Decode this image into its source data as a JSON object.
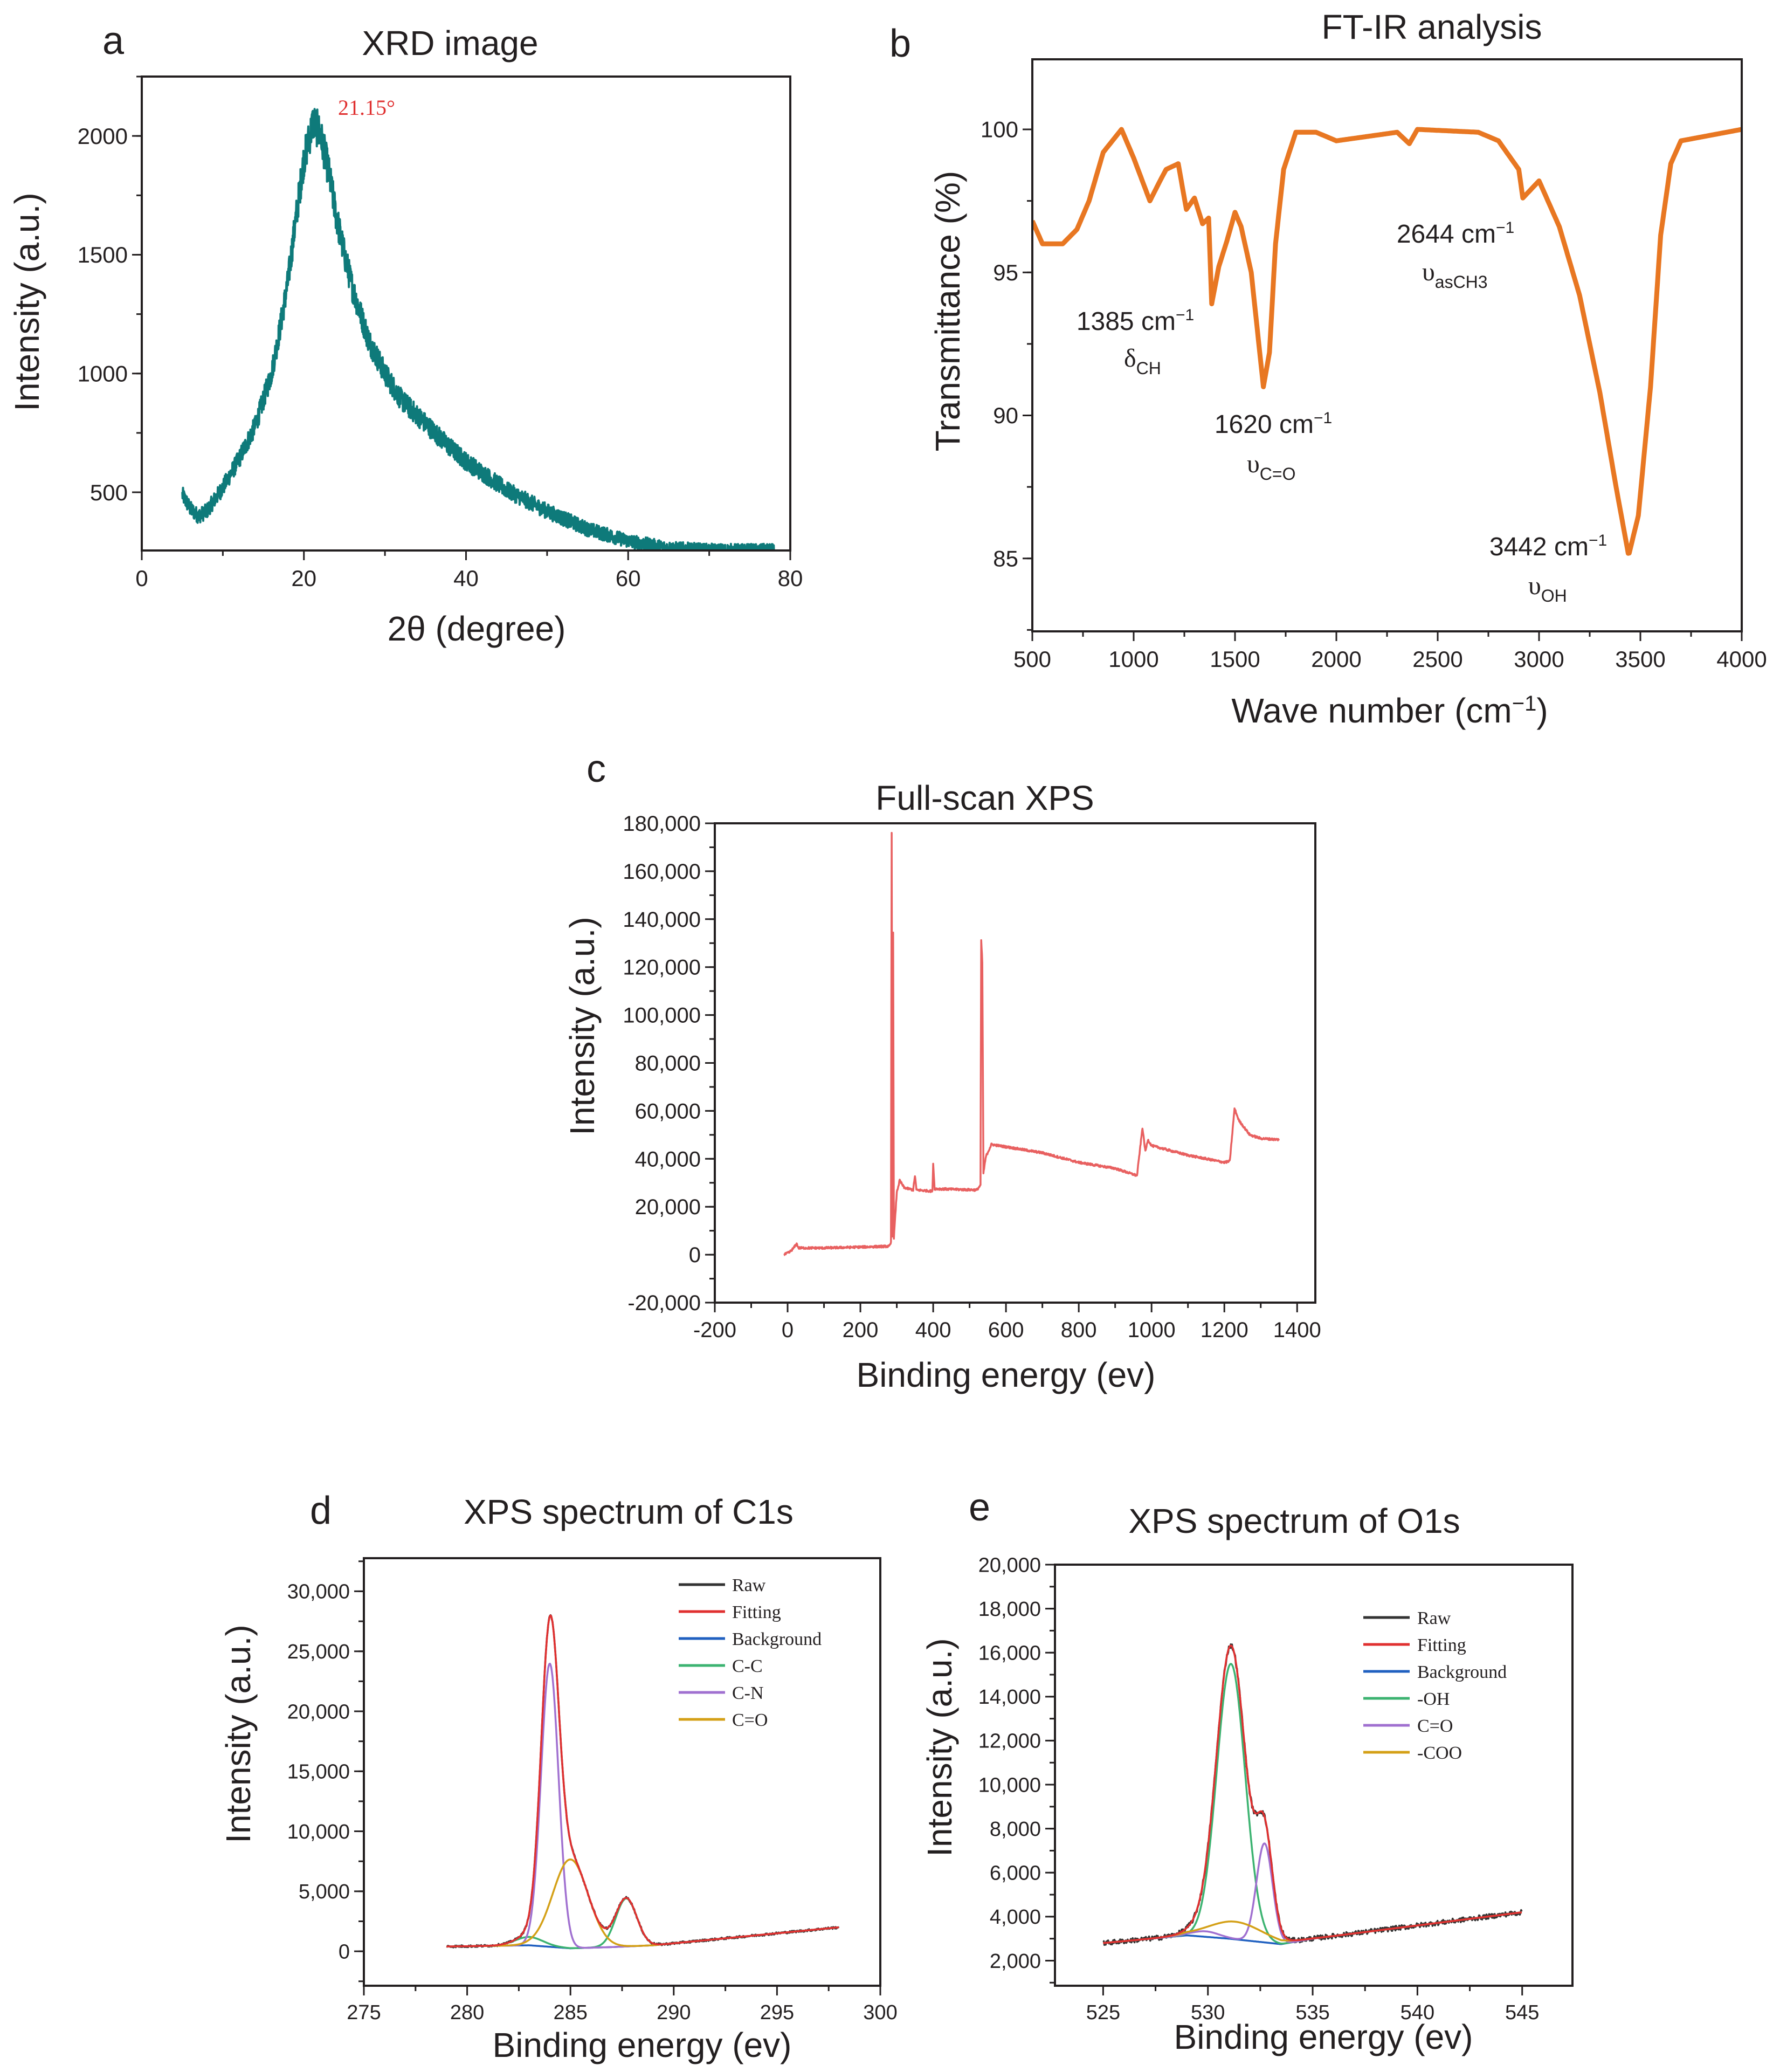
{
  "chart_data": [
    {
      "id": "xrd",
      "panel": "a",
      "type": "line",
      "title": "XRD image",
      "xlabel": "2θ (degree)",
      "ylabel": "Intensity (a.u.)",
      "xlim": [
        0,
        80
      ],
      "ylim": [
        255,
        2250
      ],
      "xticks": [
        0,
        20,
        40,
        60,
        80
      ],
      "xtick_labels": [
        "0",
        "20",
        "40",
        "60",
        "80"
      ],
      "yticks": [
        500,
        1000,
        1500,
        2000
      ],
      "ytick_labels": [
        "500",
        "1000",
        "1500",
        "2000"
      ],
      "grid": false,
      "series": [
        {
          "name": "XRD",
          "color": "#0e7a7a",
          "points": [
            [
              5,
              490
            ],
            [
              6,
              430
            ],
            [
              7,
              400
            ],
            [
              8,
              420
            ],
            [
              10,
              520
            ],
            [
              12,
              640
            ],
            [
              14,
              780
            ],
            [
              16,
              1000
            ],
            [
              17,
              1180
            ],
            [
              18,
              1380
            ],
            [
              19,
              1650
            ],
            [
              20,
              1900
            ],
            [
              21.15,
              2060
            ],
            [
              22,
              2010
            ],
            [
              23,
              1860
            ],
            [
              24,
              1660
            ],
            [
              25,
              1500
            ],
            [
              26,
              1360
            ],
            [
              28,
              1140
            ],
            [
              30,
              1000
            ],
            [
              32,
              890
            ],
            [
              35,
              790
            ],
            [
              38,
              690
            ],
            [
              40,
              630
            ],
            [
              45,
              510
            ],
            [
              50,
              420
            ],
            [
              55,
              345
            ],
            [
              60,
              295
            ],
            [
              65,
              265
            ],
            [
              70,
              256
            ],
            [
              78,
              255
            ]
          ]
        }
      ],
      "annotations": [
        {
          "label": "21.15°",
          "color": "#e03030"
        }
      ]
    },
    {
      "id": "ftir",
      "panel": "b",
      "type": "line",
      "title": "FT-IR analysis",
      "xlabel": "Wave number (cm",
      "xlabel_sup": "−1",
      "xlabel_end": ")",
      "ylabel": "Transmittance (%)",
      "xlim": [
        500,
        4000
      ],
      "ylim": [
        82.45,
        102.45
      ],
      "xticks": [
        500,
        1000,
        1500,
        2000,
        2500,
        3000,
        3500,
        4000
      ],
      "xtick_labels": [
        "500",
        "1000",
        "1500",
        "2000",
        "2500",
        "3000",
        "3500",
        "4000"
      ],
      "yticks": [
        85,
        90,
        95,
        100
      ],
      "ytick_labels": [
        "85",
        "90",
        "95",
        "100"
      ],
      "grid": false,
      "series": [
        {
          "name": "FT-IR",
          "color": "#e87722",
          "points": [
            [
              500,
              96.8
            ],
            [
              550,
              96
            ],
            [
              650,
              96
            ],
            [
              720,
              96.5
            ],
            [
              780,
              97.5
            ],
            [
              850,
              99.2
            ],
            [
              940,
              100
            ],
            [
              1000,
              99
            ],
            [
              1080,
              97.5
            ],
            [
              1130,
              98.2
            ],
            [
              1160,
              98.6
            ],
            [
              1220,
              98.8
            ],
            [
              1260,
              97.2
            ],
            [
              1300,
              97.6
            ],
            [
              1340,
              96.7
            ],
            [
              1370,
              96.9
            ],
            [
              1385,
              93.9
            ],
            [
              1420,
              95.2
            ],
            [
              1460,
              96.1
            ],
            [
              1500,
              97.1
            ],
            [
              1530,
              96.6
            ],
            [
              1580,
              95
            ],
            [
              1610,
              93
            ],
            [
              1640,
              91
            ],
            [
              1670,
              92.2
            ],
            [
              1700,
              96
            ],
            [
              1740,
              98.6
            ],
            [
              1800,
              99.9
            ],
            [
              1900,
              99.9
            ],
            [
              2000,
              99.6
            ],
            [
              2200,
              99.8
            ],
            [
              2300,
              99.9
            ],
            [
              2360,
              99.5
            ],
            [
              2400,
              100
            ],
            [
              2700,
              99.9
            ],
            [
              2800,
              99.6
            ],
            [
              2850,
              99.1
            ],
            [
              2900,
              98.6
            ],
            [
              2920,
              97.6
            ],
            [
              3000,
              98.2
            ],
            [
              3100,
              96.6
            ],
            [
              3200,
              94.2
            ],
            [
              3300,
              90.8
            ],
            [
              3380,
              87.5
            ],
            [
              3442,
              85.1
            ],
            [
              3490,
              86.5
            ],
            [
              3550,
              91
            ],
            [
              3600,
              96.3
            ],
            [
              3650,
              98.8
            ],
            [
              3700,
              99.6
            ],
            [
              3850,
              99.8
            ],
            [
              4000,
              100
            ]
          ]
        }
      ],
      "annotations": [
        {
          "label": "1385 cm",
          "sup": "−1",
          "symbol": "δ",
          "sub": "CH"
        },
        {
          "label": "1620 cm",
          "sup": "−1",
          "symbol": "υ",
          "sub": "C=O"
        },
        {
          "label": "2644 cm",
          "sup": "−1",
          "symbol": "υ",
          "sub": "asCH3"
        },
        {
          "label": "3442 cm",
          "sup": "−1",
          "symbol": "υ",
          "sub": "OH"
        }
      ]
    },
    {
      "id": "fullscan",
      "panel": "c",
      "type": "line",
      "title": "Full-scan XPS",
      "xlabel": "Binding energy (ev)",
      "ylabel": "Intensity (a.u.)",
      "xlim": [
        -200,
        1450
      ],
      "ylim": [
        -20000,
        180000
      ],
      "xticks": [
        -200,
        0,
        200,
        400,
        600,
        800,
        1000,
        1200,
        1400
      ],
      "xtick_labels": [
        "-200",
        "0",
        "200",
        "400",
        "600",
        "800",
        "1000",
        "1200",
        "1400"
      ],
      "yticks": [
        -20000,
        0,
        20000,
        40000,
        60000,
        80000,
        100000,
        120000,
        140000,
        160000,
        180000
      ],
      "ytick_labels": [
        "-20,000",
        "0",
        "20,000",
        "40,000",
        "60,000",
        "80,000",
        "100,000",
        "120,000",
        "140,000",
        "160,000",
        "180,000"
      ],
      "grid": false,
      "series": [
        {
          "name": "Full-scan",
          "color": "#e86060",
          "points": [
            [
              -10,
              0
            ],
            [
              5,
              1000
            ],
            [
              15,
              2500
            ],
            [
              25,
              4500
            ],
            [
              30,
              2800
            ],
            [
              100,
              2800
            ],
            [
              280,
              3500
            ],
            [
              284,
              5000
            ],
            [
              286,
              176000
            ],
            [
              288,
              8000
            ],
            [
              290,
              134000
            ],
            [
              292,
              7000
            ],
            [
              300,
              26000
            ],
            [
              308,
              31000
            ],
            [
              320,
              28000
            ],
            [
              345,
              27000
            ],
            [
              350,
              33000
            ],
            [
              354,
              27000
            ],
            [
              398,
              26500
            ],
            [
              400,
              38000
            ],
            [
              404,
              27500
            ],
            [
              520,
              27000
            ],
            [
              530,
              29000
            ],
            [
              532,
              131000
            ],
            [
              535,
              122000
            ],
            [
              538,
              34000
            ],
            [
              545,
              41000
            ],
            [
              560,
              46000
            ],
            [
              600,
              45000
            ],
            [
              700,
              42500
            ],
            [
              800,
              38500
            ],
            [
              900,
              36000
            ],
            [
              960,
              33000
            ],
            [
              975,
              53000
            ],
            [
              983,
              43000
            ],
            [
              990,
              48000
            ],
            [
              1000,
              45500
            ],
            [
              1100,
              41500
            ],
            [
              1200,
              38500
            ],
            [
              1215,
              39000
            ],
            [
              1228,
              61000
            ],
            [
              1240,
              56000
            ],
            [
              1270,
              50000
            ],
            [
              1300,
              48500
            ],
            [
              1350,
              48000
            ]
          ]
        }
      ]
    },
    {
      "id": "c1s",
      "panel": "d",
      "type": "line",
      "title": "XPS spectrum of C1s",
      "xlabel": "Binding energy (ev)",
      "ylabel": "Intensity (a.u.)",
      "xlim": [
        275,
        300
      ],
      "ylim": [
        -2870,
        32760
      ],
      "xticks": [
        275,
        280,
        285,
        290,
        295,
        300
      ],
      "xtick_labels": [
        "275",
        "280",
        "285",
        "290",
        "295",
        "300"
      ],
      "yticks": [
        0,
        5000,
        10000,
        15000,
        20000,
        25000,
        30000
      ],
      "ytick_labels": [
        "0",
        "5,000",
        "10,000",
        "15,000",
        "20,000",
        "25,000",
        "30,000"
      ],
      "grid": false,
      "legend": "top-right",
      "data_range": [
        279,
        298
      ],
      "background": [
        [
          279,
          400
        ],
        [
          283,
          500
        ],
        [
          285,
          250
        ],
        [
          287,
          350
        ],
        [
          289,
          500
        ],
        [
          298,
          2000
        ]
      ],
      "series": [
        {
          "name": "Raw",
          "color": "#333333",
          "kind": "raw"
        },
        {
          "name": "Fitting",
          "color": "#e03030",
          "kind": "fit"
        },
        {
          "name": "Background",
          "color": "#2060c0",
          "kind": "background"
        },
        {
          "name": "C-C",
          "color": "#3cb371",
          "kind": "component",
          "peaks": [
            [
              283,
              700,
              1.6
            ],
            [
              287.7,
              4000,
              1.2
            ]
          ]
        },
        {
          "name": "C-N",
          "color": "#a070d0",
          "kind": "component",
          "peaks": [
            [
              284,
              23600,
              1.0
            ]
          ]
        },
        {
          "name": "C=O",
          "color": "#d4a017",
          "kind": "component",
          "peaks": [
            [
              285,
              7400,
              2.0
            ]
          ]
        }
      ]
    },
    {
      "id": "o1s",
      "panel": "e",
      "type": "line",
      "title": "XPS spectrum of O1s",
      "xlabel": "Binding energy (ev)",
      "ylabel": "Intensity (a.u.)",
      "xlim": [
        522.7,
        547.4
      ],
      "ylim": [
        860,
        20000
      ],
      "xticks": [
        525,
        530,
        535,
        540,
        545
      ],
      "xtick_labels": [
        "525",
        "530",
        "535",
        "540",
        "545"
      ],
      "yticks": [
        2000,
        4000,
        6000,
        8000,
        10000,
        12000,
        14000,
        16000,
        18000,
        20000
      ],
      "ytick_labels": [
        "2,000",
        "4,000",
        "6,000",
        "8,000",
        "10,000",
        "12,000",
        "14,000",
        "16,000",
        "18,000",
        "20,000"
      ],
      "grid": false,
      "legend": "top-right",
      "data_range": [
        525,
        545
      ],
      "background": [
        [
          525,
          2800
        ],
        [
          529,
          3150
        ],
        [
          531,
          3000
        ],
        [
          533.5,
          2750
        ],
        [
          535,
          3000
        ],
        [
          545,
          4200
        ]
      ],
      "series": [
        {
          "name": "Raw",
          "color": "#333333",
          "kind": "raw"
        },
        {
          "name": "Fitting",
          "color": "#e03030",
          "kind": "fit"
        },
        {
          "name": "Background",
          "color": "#2060c0",
          "kind": "background"
        },
        {
          "name": "-OH",
          "color": "#3cb371",
          "kind": "component",
          "peaks": [
            [
              531.1,
              12500,
              1.6
            ]
          ]
        },
        {
          "name": "C=O",
          "color": "#a070d0",
          "kind": "component",
          "peaks": [
            [
              532.7,
              4500,
              0.9
            ],
            [
              529.9,
              250,
              1.5
            ]
          ]
        },
        {
          "name": "-COO",
          "color": "#d4a017",
          "kind": "component",
          "peaks": [
            [
              531.3,
              800,
              3.0
            ]
          ]
        }
      ]
    }
  ]
}
